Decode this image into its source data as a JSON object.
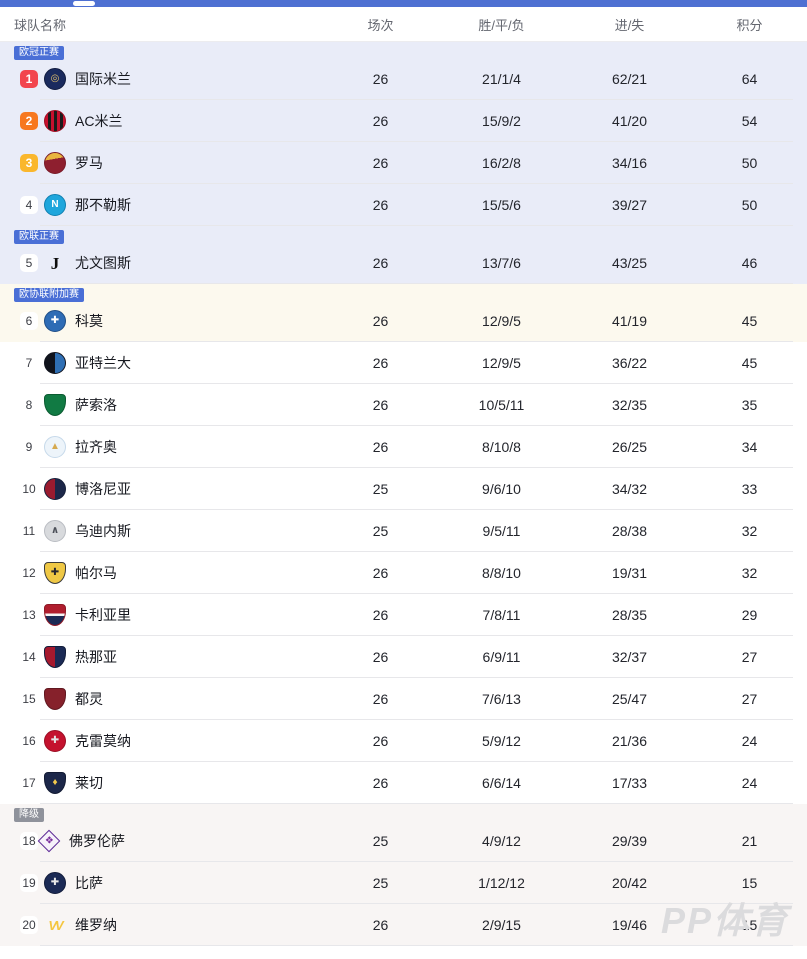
{
  "topbar": {
    "color": "#4E70D2"
  },
  "header": {
    "cols": [
      "球队名称",
      "场次",
      "胜/平/负",
      "进/失",
      "积分"
    ]
  },
  "watermark": {
    "text": "PP体育"
  },
  "colors": {
    "champions_zone_bg": "#E9ECF8",
    "europa_zone_bg": "#E9ECF8",
    "conference_zone_bg": "#FCF9EE",
    "relegation_zone_bg": "#F8F5F4",
    "badge_blue": "#4A6FD6",
    "badge_gray": "#8F929B",
    "rank1": "#F2454E",
    "rank2": "#F7781F",
    "rank3": "#FAB72D"
  },
  "sections": [
    {
      "name": "champions-league-zone",
      "badge": {
        "label": "欧冠正赛",
        "style": "blue"
      },
      "bg": "#E9ECF8",
      "rows": [
        {
          "rank": "1",
          "rank_style": "r1",
          "team": "国际米兰",
          "played": "26",
          "wdl": "21/1/4",
          "goals": "62/21",
          "points": "64",
          "logo": {
            "shape": "circle",
            "bg": "#1A2A5E",
            "border": "#0F1A3E",
            "glyph": "◎",
            "glyph_color": "#E8C56B",
            "glyph_class": ""
          }
        },
        {
          "rank": "2",
          "rank_style": "r2",
          "team": "AC米兰",
          "played": "26",
          "wdl": "15/9/2",
          "goals": "41/20",
          "points": "54",
          "logo": {
            "shape": "circle",
            "bg": "repeating-linear-gradient(90deg,#C8102E 0 3px,#1B1B1B 3px 6px)",
            "border": "#9E0E24",
            "glyph": "",
            "glyph_color": "#fff",
            "glyph_class": ""
          }
        },
        {
          "rank": "3",
          "rank_style": "r3",
          "team": "罗马",
          "played": "26",
          "wdl": "16/2/8",
          "goals": "34/16",
          "points": "50",
          "logo": {
            "shape": "circle",
            "bg": "linear-gradient(170deg,#E9B53F 0 32%,#8E1F2F 32%)",
            "border": "#791A28",
            "glyph": "",
            "glyph_color": "#fff",
            "glyph_class": ""
          }
        },
        {
          "rank": "4",
          "rank_style": "",
          "team": "那不勒斯",
          "played": "26",
          "wdl": "15/5/6",
          "goals": "39/27",
          "points": "50",
          "logo": {
            "shape": "circle",
            "bg": "#1FA6DC",
            "border": "#0F7FB0",
            "glyph": "N",
            "glyph_color": "#ffffff",
            "glyph_class": ""
          }
        }
      ]
    },
    {
      "name": "europa-league-zone",
      "badge": {
        "label": "欧联正赛",
        "style": "blue"
      },
      "bg": "#E9ECF8",
      "rows": [
        {
          "rank": "5",
          "rank_style": "",
          "team": "尤文图斯",
          "played": "26",
          "wdl": "13/7/6",
          "goals": "43/25",
          "points": "46",
          "logo": {
            "shape": "plain",
            "bg": "transparent",
            "border": "",
            "glyph": "J",
            "glyph_color": "#0C0C0C",
            "glyph_class": "big"
          }
        }
      ]
    },
    {
      "name": "conference-playoff-zone",
      "badge": {
        "label": "欧协联附加赛",
        "style": "blue"
      },
      "bg": "#FCF9EE",
      "rows": [
        {
          "rank": "6",
          "rank_style": "",
          "team": "科莫",
          "played": "26",
          "wdl": "12/9/5",
          "goals": "41/19",
          "points": "45",
          "logo": {
            "shape": "circle",
            "bg": "#2E6CB5",
            "border": "#1F4E86",
            "glyph": "✚",
            "glyph_color": "#ffffff",
            "glyph_class": ""
          }
        }
      ]
    },
    {
      "name": "mid-table",
      "badge": null,
      "bg": "#FFFFFF",
      "rows": [
        {
          "rank": "7",
          "rank_style": "",
          "team": "亚特兰大",
          "played": "26",
          "wdl": "12/9/5",
          "goals": "36/22",
          "points": "45",
          "logo": {
            "shape": "circle",
            "bg": "linear-gradient(90deg,#10131C 0 50%,#2F6FB4 50%)",
            "border": "#10131C",
            "glyph": "",
            "glyph_color": "#fff",
            "glyph_class": ""
          }
        },
        {
          "rank": "8",
          "rank_style": "",
          "team": "萨索洛",
          "played": "26",
          "wdl": "10/5/11",
          "goals": "32/35",
          "points": "35",
          "logo": {
            "shape": "shield",
            "bg": "#117A43",
            "border": "#0B5B31",
            "glyph": "",
            "glyph_color": "#fff",
            "glyph_class": ""
          }
        },
        {
          "rank": "9",
          "rank_style": "",
          "team": "拉齐奥",
          "played": "26",
          "wdl": "8/10/8",
          "goals": "26/25",
          "points": "34",
          "logo": {
            "shape": "circle",
            "bg": "#EDF4FA",
            "border": "#C6D9EA",
            "glyph": "▲",
            "glyph_color": "#D5A94F",
            "glyph_class": ""
          }
        },
        {
          "rank": "10",
          "rank_style": "",
          "team": "博洛尼亚",
          "played": "25",
          "wdl": "9/6/10",
          "goals": "34/32",
          "points": "33",
          "logo": {
            "shape": "circle",
            "bg": "linear-gradient(90deg,#9A1B2F 0 50%,#1C2749 50%)",
            "border": "#161F3A",
            "glyph": "",
            "glyph_color": "#fff",
            "glyph_class": ""
          }
        },
        {
          "rank": "11",
          "rank_style": "",
          "team": "乌迪内斯",
          "played": "25",
          "wdl": "9/5/11",
          "goals": "28/38",
          "points": "32",
          "logo": {
            "shape": "circle",
            "bg": "#D8DADD",
            "border": "#B9BCC2",
            "glyph": "∧",
            "glyph_color": "#4B4F58",
            "glyph_class": ""
          }
        },
        {
          "rank": "12",
          "rank_style": "",
          "team": "帕尔马",
          "played": "26",
          "wdl": "8/8/10",
          "goals": "19/31",
          "points": "32",
          "logo": {
            "shape": "shield",
            "bg": "#EFC845",
            "border": "#3A3A3A",
            "glyph": "✚",
            "glyph_color": "#26262E",
            "glyph_class": ""
          }
        },
        {
          "rank": "13",
          "rank_style": "",
          "team": "卡利亚里",
          "played": "26",
          "wdl": "7/8/11",
          "goals": "28/35",
          "points": "29",
          "logo": {
            "shape": "shield",
            "bg": "linear-gradient(180deg,#B01E2E 0 42%,#F5F5F5 42% 56%,#1B2A55 56%)",
            "border": "#8E1825",
            "glyph": "",
            "glyph_color": "#fff",
            "glyph_class": ""
          }
        },
        {
          "rank": "14",
          "rank_style": "",
          "team": "热那亚",
          "played": "26",
          "wdl": "6/9/11",
          "goals": "32/37",
          "points": "27",
          "logo": {
            "shape": "shield",
            "bg": "linear-gradient(90deg,#A6192E 0 50%,#1B2A55 50%)",
            "border": "#121C3A",
            "glyph": "",
            "glyph_color": "#fff",
            "glyph_class": ""
          }
        },
        {
          "rank": "15",
          "rank_style": "",
          "team": "都灵",
          "played": "26",
          "wdl": "7/6/13",
          "goals": "25/47",
          "points": "27",
          "logo": {
            "shape": "shield",
            "bg": "#86212B",
            "border": "#611820",
            "glyph": "",
            "glyph_color": "#E3B75C",
            "glyph_class": ""
          }
        },
        {
          "rank": "16",
          "rank_style": "",
          "team": "克雷莫纳",
          "played": "26",
          "wdl": "5/9/12",
          "goals": "21/36",
          "points": "24",
          "logo": {
            "shape": "circle",
            "bg": "#C4122E",
            "border": "#9A0E24",
            "glyph": "✚",
            "glyph_color": "#E3E3E3",
            "glyph_class": ""
          }
        },
        {
          "rank": "17",
          "rank_style": "",
          "team": "莱切",
          "played": "26",
          "wdl": "6/6/14",
          "goals": "17/33",
          "points": "24",
          "logo": {
            "shape": "shield",
            "bg": "#1C2749",
            "border": "#121A33",
            "glyph": "♦",
            "glyph_color": "#F2C94C",
            "glyph_class": ""
          }
        }
      ]
    },
    {
      "name": "relegation-zone",
      "badge": {
        "label": "降级",
        "style": "gray"
      },
      "bg": "#F8F5F4",
      "rows": [
        {
          "rank": "18",
          "rank_style": "",
          "team": "佛罗伦萨",
          "played": "25",
          "wdl": "4/9/12",
          "goals": "29/39",
          "points": "21",
          "logo": {
            "shape": "diamond",
            "bg": "#F6F1FA",
            "border": "#5E2B97",
            "glyph": "❖",
            "glyph_color": "#7A2F9E",
            "glyph_class": ""
          }
        },
        {
          "rank": "19",
          "rank_style": "",
          "team": "比萨",
          "played": "25",
          "wdl": "1/12/12",
          "goals": "20/42",
          "points": "15",
          "logo": {
            "shape": "circle",
            "bg": "#1B2A55",
            "border": "#111B3A",
            "glyph": "✚",
            "glyph_color": "#E8E8E8",
            "glyph_class": ""
          }
        },
        {
          "rank": "20",
          "rank_style": "",
          "team": "维罗纳",
          "played": "26",
          "wdl": "2/9/15",
          "goals": "19/46",
          "points": "15",
          "logo": {
            "shape": "plain",
            "bg": "transparent",
            "border": "",
            "glyph": "VV",
            "glyph_color": "#F4C63F",
            "glyph_class": "vv"
          }
        }
      ]
    }
  ]
}
